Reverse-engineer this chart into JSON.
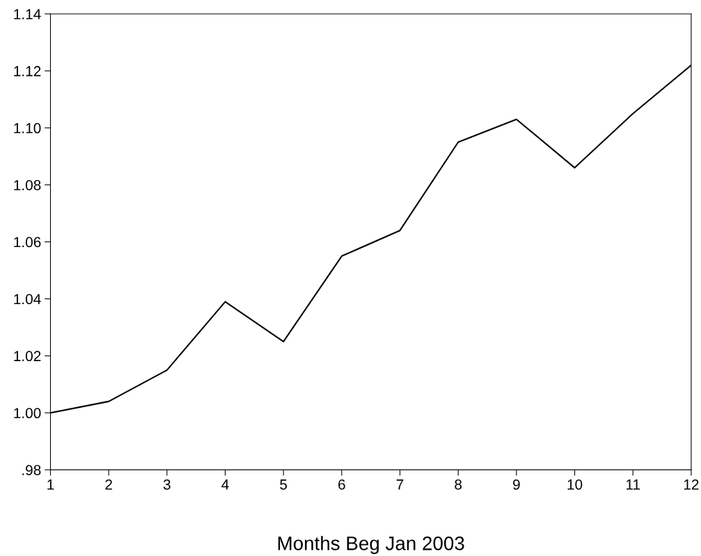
{
  "chart_data": {
    "type": "line",
    "xlabel": "Months Beg Jan 2003",
    "x": [
      1,
      2,
      3,
      4,
      5,
      6,
      7,
      8,
      9,
      10,
      11,
      12
    ],
    "series": [
      {
        "color": "#000000",
        "values": [
          1.0,
          1.004,
          1.015,
          1.039,
          1.025,
          1.055,
          1.064,
          1.095,
          1.103,
          1.086,
          1.105,
          1.122
        ]
      }
    ],
    "xlim": [
      1,
      12
    ],
    "xticks": [
      1,
      2,
      3,
      4,
      5,
      6,
      7,
      8,
      9,
      10,
      11,
      12
    ],
    "ylim": [
      0.98,
      1.14
    ],
    "yticks": [
      {
        "value": 0.98,
        "label": ".98"
      },
      {
        "value": 1.0,
        "label": "1.00"
      },
      {
        "value": 1.02,
        "label": "1.02"
      },
      {
        "value": 1.04,
        "label": "1.04"
      },
      {
        "value": 1.06,
        "label": "1.06"
      },
      {
        "value": 1.08,
        "label": "1.08"
      },
      {
        "value": 1.1,
        "label": "1.10"
      },
      {
        "value": 1.12,
        "label": "1.12"
      },
      {
        "value": 1.14,
        "label": "1.14"
      }
    ],
    "grid": false,
    "legend": false,
    "marker": "none",
    "line_style": "solid"
  }
}
